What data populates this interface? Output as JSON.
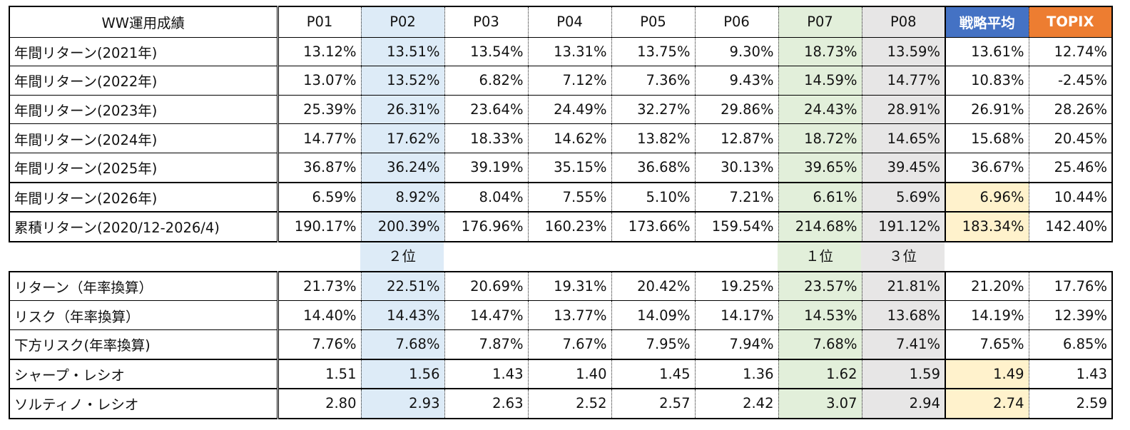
{
  "header": {
    "title": "WW運用成績",
    "columns": [
      "P01",
      "P02",
      "P03",
      "P04",
      "P05",
      "P06",
      "P07",
      "P08",
      "戦略平均",
      "TOPIX"
    ]
  },
  "annual_rows": [
    {
      "label": "年間リターン(2021年)",
      "values": [
        "13.12%",
        "13.51%",
        "13.54%",
        "13.31%",
        "13.75%",
        "9.30%",
        "18.73%",
        "13.59%",
        "13.61%",
        "12.74%"
      ]
    },
    {
      "label": "年間リターン(2022年)",
      "values": [
        "13.07%",
        "13.52%",
        "6.82%",
        "7.12%",
        "7.36%",
        "9.43%",
        "14.59%",
        "14.77%",
        "10.83%",
        "-2.45%"
      ]
    },
    {
      "label": "年間リターン(2023年)",
      "values": [
        "25.39%",
        "26.31%",
        "23.64%",
        "24.49%",
        "32.27%",
        "29.86%",
        "24.43%",
        "28.91%",
        "26.91%",
        "28.26%"
      ]
    },
    {
      "label": "年間リターン(2024年)",
      "values": [
        "14.77%",
        "17.62%",
        "18.33%",
        "14.62%",
        "13.82%",
        "12.87%",
        "18.72%",
        "14.65%",
        "15.68%",
        "20.45%"
      ]
    },
    {
      "label": "年間リターン(2025年)",
      "values": [
        "36.87%",
        "36.24%",
        "39.19%",
        "35.15%",
        "36.68%",
        "30.13%",
        "39.65%",
        "39.45%",
        "36.67%",
        "25.46%"
      ]
    },
    {
      "label": "年間リターン(2026年)",
      "values": [
        "6.59%",
        "8.92%",
        "8.04%",
        "7.55%",
        "5.10%",
        "7.21%",
        "6.61%",
        "5.69%",
        "6.96%",
        "10.44%"
      ]
    },
    {
      "label": "累積リターン(2020/12-2026/4)",
      "values": [
        "190.17%",
        "200.39%",
        "176.96%",
        "160.23%",
        "173.66%",
        "159.54%",
        "214.68%",
        "191.12%",
        "183.34%",
        "142.40%"
      ]
    }
  ],
  "ranks": {
    "p02": "２位",
    "p07": "１位",
    "p08": "３位"
  },
  "risk_rows": [
    {
      "label": "リターン（年率換算）",
      "values": [
        "21.73%",
        "22.51%",
        "20.69%",
        "19.31%",
        "20.42%",
        "19.25%",
        "23.57%",
        "21.81%",
        "21.20%",
        "17.76%"
      ]
    },
    {
      "label": "リスク（年率換算）",
      "values": [
        "14.40%",
        "14.43%",
        "14.47%",
        "13.77%",
        "14.09%",
        "14.17%",
        "14.53%",
        "13.68%",
        "14.19%",
        "12.39%"
      ]
    },
    {
      "label": "下方リスク(年率換算)",
      "values": [
        "7.76%",
        "7.68%",
        "7.87%",
        "7.67%",
        "7.95%",
        "7.94%",
        "7.68%",
        "7.41%",
        "7.65%",
        "6.85%"
      ]
    },
    {
      "label": "シャープ・レシオ",
      "values": [
        "1.51",
        "1.56",
        "1.43",
        "1.40",
        "1.45",
        "1.36",
        "1.62",
        "1.59",
        "1.49",
        "1.43"
      ]
    },
    {
      "label": "ソルティノ・レシオ",
      "values": [
        "2.80",
        "2.93",
        "2.63",
        "2.52",
        "2.57",
        "2.42",
        "3.07",
        "2.94",
        "2.74",
        "2.59"
      ]
    }
  ],
  "colors": {
    "p02": "#ddebf7",
    "p07": "#e2efda",
    "p08": "#e7e6e6",
    "avg_header": "#4472c4",
    "topix_header": "#ed7d31",
    "highlight": "#fff2cc"
  }
}
